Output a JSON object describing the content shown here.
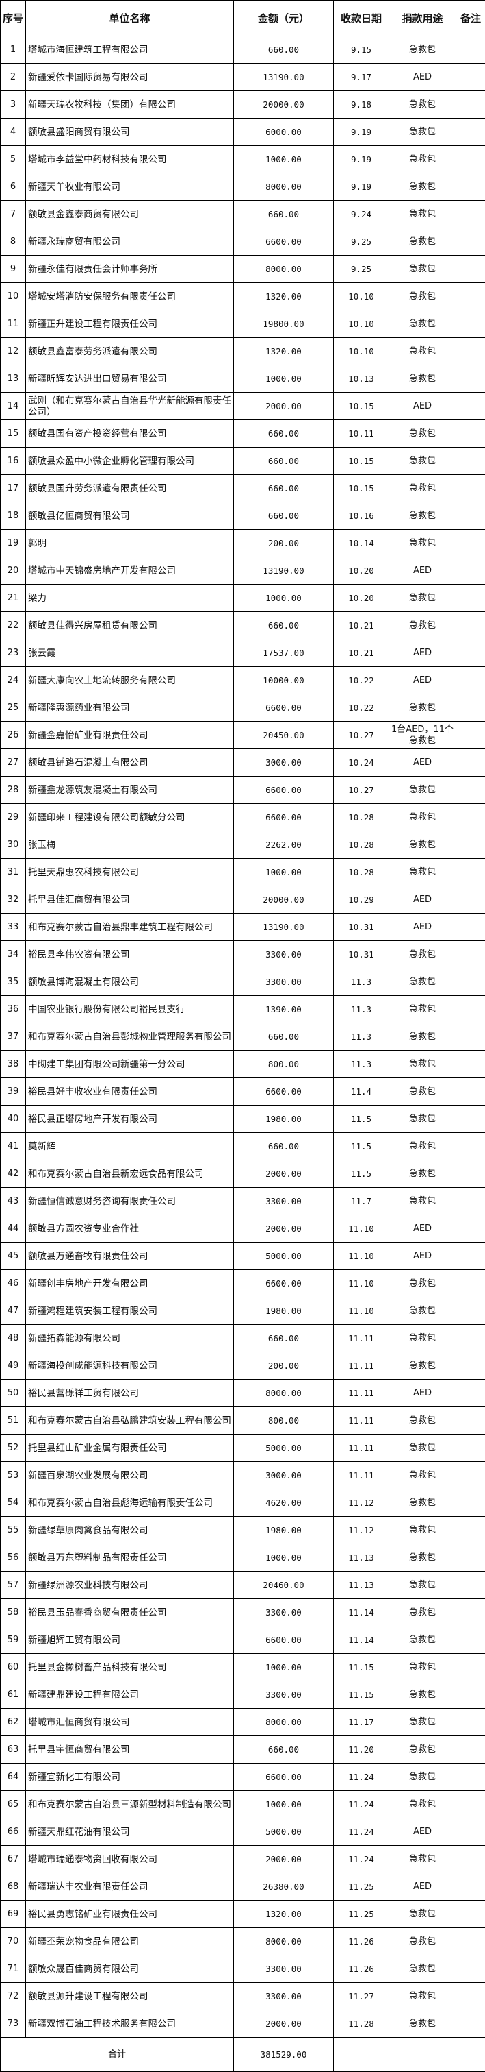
{
  "headers": {
    "seq": "序号",
    "name": "单位名称",
    "amount": "金额（元）",
    "date": "收款日期",
    "purpose": "捐款用途",
    "remark": "备注"
  },
  "rows": [
    [
      "1",
      "塔城市海恒建筑工程有限公司",
      "660.00",
      "9.15",
      "急救包"
    ],
    [
      "2",
      "新疆爱依卡国际贸易有限公司",
      "13190.00",
      "9.17",
      "AED"
    ],
    [
      "3",
      "新疆天瑞农牧科技（集团）有限公司",
      "20000.00",
      "9.18",
      "急救包"
    ],
    [
      "4",
      "额敏县盛阳商贸有限公司",
      "6000.00",
      "9.19",
      "急救包"
    ],
    [
      "5",
      "塔城市李益堂中药材科技有限公司",
      "1000.00",
      "9.19",
      "急救包"
    ],
    [
      "6",
      "新疆天羊牧业有限公司",
      "8000.00",
      "9.19",
      "急救包"
    ],
    [
      "7",
      "额敏县金鑫泰商贸有限公司",
      "660.00",
      "9.24",
      "急救包"
    ],
    [
      "8",
      "新疆永瑞商贸有限公司",
      "6600.00",
      "9.25",
      "急救包"
    ],
    [
      "9",
      "新疆永佳有限责任会计师事务所",
      "8000.00",
      "9.25",
      "急救包"
    ],
    [
      "10",
      "塔城安塔消防安保服务有限责任公司",
      "1320.00",
      "10.10",
      "急救包"
    ],
    [
      "11",
      "新疆正升建设工程有限责任公司",
      "19800.00",
      "10.10",
      "急救包"
    ],
    [
      "12",
      "额敏县鑫富泰劳务派遣有限公司",
      "1320.00",
      "10.10",
      "急救包"
    ],
    [
      "13",
      "新疆昕辉安达进出口贸易有限公司",
      "1000.00",
      "10.13",
      "急救包"
    ],
    [
      "14",
      "武刚（和布克赛尔蒙古自治县华光新能源有限责任公司）",
      "2000.00",
      "10.15",
      "AED"
    ],
    [
      "15",
      "额敏县国有资产投资经营有限公司",
      "660.00",
      "10.11",
      "急救包"
    ],
    [
      "16",
      "额敏县众盈中小微企业孵化管理有限公司",
      "660.00",
      "10.15",
      "急救包"
    ],
    [
      "17",
      "额敏县国升劳务派遣有限责任公司",
      "660.00",
      "10.15",
      "急救包"
    ],
    [
      "18",
      "额敏县亿恒商贸有限公司",
      "660.00",
      "10.16",
      "急救包"
    ],
    [
      "19",
      "郭明",
      "200.00",
      "10.14",
      "急救包"
    ],
    [
      "20",
      "塔城市中天锦盛房地产开发有限公司",
      "13190.00",
      "10.20",
      "AED"
    ],
    [
      "21",
      "梁力",
      "1000.00",
      "10.20",
      "急救包"
    ],
    [
      "22",
      "额敏县佳得兴房屋租赁有限公司",
      "660.00",
      "10.21",
      "急救包"
    ],
    [
      "23",
      "张云霞",
      "17537.00",
      "10.21",
      "AED"
    ],
    [
      "24",
      "新疆大康向农土地流转服务有限公司",
      "10000.00",
      "10.22",
      "AED"
    ],
    [
      "25",
      "新疆隆惠源药业有限公司",
      "6600.00",
      "10.22",
      "急救包"
    ],
    [
      "26",
      "新疆金嘉怡矿业有限责任公司",
      "20450.00",
      "10.27",
      "1台AED，11个急救包"
    ],
    [
      "27",
      "额敏县铺路石混凝土有限公司",
      "3000.00",
      "10.24",
      "AED"
    ],
    [
      "28",
      "新疆鑫龙源筑友混凝土有限公司",
      "6600.00",
      "10.27",
      "急救包"
    ],
    [
      "29",
      "新疆印来工程建设有限公司额敏分公司",
      "6600.00",
      "10.28",
      "急救包"
    ],
    [
      "30",
      "张玉梅",
      "2262.00",
      "10.28",
      "急救包"
    ],
    [
      "31",
      "托里天鼎惠农科技有限公司",
      "1000.00",
      "10.28",
      "急救包"
    ],
    [
      "32",
      "托里县佳汇商贸有限公司",
      "20000.00",
      "10.29",
      "AED"
    ],
    [
      "33",
      "和布克赛尔蒙古自治县鼎丰建筑工程有限公司",
      "13190.00",
      "10.31",
      "AED"
    ],
    [
      "34",
      "裕民县李伟农资有限公司",
      "3300.00",
      "10.31",
      "急救包"
    ],
    [
      "35",
      "额敏县博海混凝土有限公司",
      "3300.00",
      "11.3",
      "急救包"
    ],
    [
      "36",
      "中国农业银行股份有限公司裕民县支行",
      "1390.00",
      "11.3",
      "急救包"
    ],
    [
      "37",
      "和布克赛尔蒙古自治县彭城物业管理服务有限公司",
      "660.00",
      "11.3",
      "急救包"
    ],
    [
      "38",
      "中砌建工集团有限公司新疆第一分公司",
      "800.00",
      "11.3",
      "急救包"
    ],
    [
      "39",
      "裕民县好丰收农业有限责任公司",
      "6600.00",
      "11.4",
      "急救包"
    ],
    [
      "40",
      "裕民县正塔房地产开发有限公司",
      "1980.00",
      "11.5",
      "急救包"
    ],
    [
      "41",
      "莫新辉",
      "660.00",
      "11.5",
      "急救包"
    ],
    [
      "42",
      "和布克赛尔蒙古自治县新宏远食品有限公司",
      "2000.00",
      "11.5",
      "急救包"
    ],
    [
      "43",
      "新疆恒信诚意财务咨询有限责任公司",
      "3300.00",
      "11.7",
      "急救包"
    ],
    [
      "44",
      "额敏县方圆农资专业合作社",
      "2000.00",
      "11.10",
      "AED"
    ],
    [
      "45",
      "额敏县万通畜牧有限责任公司",
      "5000.00",
      "11.10",
      "AED"
    ],
    [
      "46",
      "新疆创丰房地产开发有限公司",
      "6600.00",
      "11.10",
      "急救包"
    ],
    [
      "47",
      "新疆鸿程建筑安装工程有限公司",
      "1980.00",
      "11.10",
      "急救包"
    ],
    [
      "48",
      "新疆拓森能源有限公司",
      "660.00",
      "11.11",
      "急救包"
    ],
    [
      "49",
      "新疆海投创成能源科技有限公司",
      "200.00",
      "11.11",
      "急救包"
    ],
    [
      "50",
      "裕民县营砾祥工贸有限公司",
      "8000.00",
      "11.11",
      "AED"
    ],
    [
      "51",
      "和布克赛尔蒙古自治县弘鹏建筑安装工程有限公司",
      "800.00",
      "11.11",
      "急救包"
    ],
    [
      "52",
      "托里县红山矿业金属有限责任公司",
      "5000.00",
      "11.11",
      "急救包"
    ],
    [
      "53",
      "新疆百泉湖农业发展有限公司",
      "3000.00",
      "11.11",
      "急救包"
    ],
    [
      "54",
      "和布克赛尔蒙古自治县彪海运输有限责任公司",
      "4620.00",
      "11.12",
      "急救包"
    ],
    [
      "55",
      "新疆绿草原肉禽食品有限公司",
      "1980.00",
      "11.12",
      "急救包"
    ],
    [
      "56",
      "额敏县万东塑料制品有限责任公司",
      "1000.00",
      "11.13",
      "急救包"
    ],
    [
      "57",
      "新疆绿洲源农业科技有限公司",
      "20460.00",
      "11.13",
      "急救包"
    ],
    [
      "58",
      "裕民县玉品春香商贸有限责任公司",
      "3300.00",
      "11.14",
      "急救包"
    ],
    [
      "59",
      "新疆旭辉工贸有限公司",
      "6600.00",
      "11.14",
      "急救包"
    ],
    [
      "60",
      "托里县金橡树畜产品科技有限公司",
      "1000.00",
      "11.15",
      "急救包"
    ],
    [
      "61",
      "新疆建鼎建设工程有限公司",
      "3300.00",
      "11.15",
      "急救包"
    ],
    [
      "62",
      "塔城市汇恒商贸有限公司",
      "8000.00",
      "11.17",
      "急救包"
    ],
    [
      "63",
      "托里县宇恒商贸有限公司",
      "660.00",
      "11.20",
      "急救包"
    ],
    [
      "64",
      "新疆宜新化工有限公司",
      "6600.00",
      "11.24",
      "急救包"
    ],
    [
      "65",
      "和布克赛尔蒙古自治县三源新型材料制造有限公司",
      "1000.00",
      "11.24",
      "急救包"
    ],
    [
      "66",
      "新疆天鼎红花油有限公司",
      "5000.00",
      "11.24",
      "AED"
    ],
    [
      "67",
      "塔城市瑞通泰物资回收有限公司",
      "2000.00",
      "11.24",
      "急救包"
    ],
    [
      "68",
      "新疆瑞达丰农业有限责任公司",
      "26380.00",
      "11.25",
      "AED"
    ],
    [
      "69",
      "裕民县勇志铭矿业有限责任公司",
      "1320.00",
      "11.25",
      "急救包"
    ],
    [
      "70",
      "新疆丕荣宠物食品有限公司",
      "8000.00",
      "11.26",
      "急救包"
    ],
    [
      "71",
      "额敏众晟百佳商贸有限公司",
      "3300.00",
      "11.26",
      "急救包"
    ],
    [
      "72",
      "额敏县源升建设工程有限公司",
      "3300.00",
      "11.27",
      "急救包"
    ],
    [
      "73",
      "新疆双博石油工程技术服务有限公司",
      "2000.00",
      "11.28",
      "急救包"
    ]
  ],
  "total": {
    "label": "合计",
    "amount": "381529.00"
  }
}
